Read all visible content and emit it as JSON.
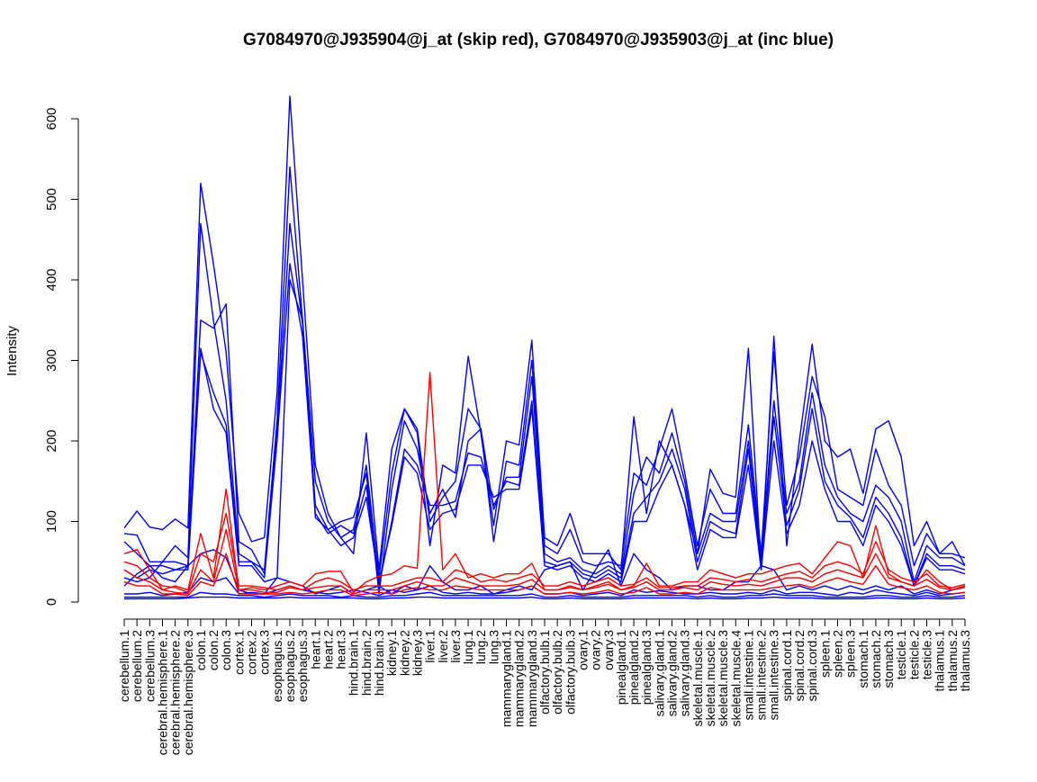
{
  "chart_data": {
    "type": "line",
    "title": "G7084970@J935904@j_at (skip red), G7084970@J935903@j_at (inc blue)",
    "ylabel": "Intensity",
    "xlabel": "",
    "ylim": [
      0,
      600
    ],
    "yticks": [
      0,
      100,
      200,
      300,
      400,
      500,
      600
    ],
    "categories": [
      "cerebellum.1",
      "cerebellum.2",
      "cerebellum.3",
      "cerebral.hemisphere.1",
      "cerebral.hemisphere.2",
      "cerebral.hemisphere.3",
      "colon.1",
      "colon.2",
      "colon.3",
      "cortex.1",
      "cortex.2",
      "cortex.3",
      "esophagus.1",
      "esophagus.2",
      "esophagus.3",
      "heart.1",
      "heart.2",
      "heart.3",
      "hind.brain.1",
      "hind.brain.2",
      "hind.brain.3",
      "kidney.1",
      "kidney.2",
      "kidney.3",
      "liver.1",
      "liver.2",
      "liver.3",
      "lung.1",
      "lung.2",
      "lung.3",
      "mammarygland.1",
      "mammarygland.2",
      "mammarygland.3",
      "olfactory.bulb.1",
      "olfactory.bulb.2",
      "olfactory.bulb.3",
      "ovary.1",
      "ovary.2",
      "ovary.3",
      "pinealgland.1",
      "pinealgland.2",
      "pinealgland.3",
      "salivary.gland.1",
      "salivary.gland.2",
      "salivary.gland.3",
      "skeletal.muscle.1",
      "skeletal.muscle.2",
      "skeletal.muscle.3",
      "skeletal.muscle.4",
      "small.intestine.1",
      "small.intestine.2",
      "small.intestine.3",
      "spinal.cord.1",
      "spinal.cord.2",
      "spinal.cord.3",
      "spleen.1",
      "spleen.2",
      "spleen.3",
      "stomach.1",
      "stomach.2",
      "stomach.3",
      "testicle.1",
      "testicle.2",
      "testicle.3",
      "thalamus.1",
      "thalamus.2",
      "thalamus.3"
    ],
    "colors": {
      "skip": "#ff0000",
      "inc": "#0000ff"
    },
    "grid": false,
    "legend": "none",
    "series": [
      {
        "group": "inc",
        "values": [
          92,
          113,
          93,
          90,
          103,
          92,
          520,
          420,
          310,
          110,
          75,
          80,
          260,
          628,
          400,
          170,
          110,
          80,
          60,
          210,
          40,
          190,
          240,
          210,
          70,
          170,
          160,
          305,
          210,
          95,
          200,
          195,
          325,
          80,
          70,
          110,
          60,
          60,
          60,
          40,
          230,
          110,
          200,
          170,
          120,
          60,
          165,
          135,
          130,
          315,
          40,
          330,
          70,
          200,
          320,
          200,
          180,
          190,
          135,
          215,
          225,
          180,
          70,
          100,
          60,
          75,
          45
        ]
      },
      {
        "group": "inc",
        "values": [
          85,
          83,
          50,
          50,
          70,
          55,
          470,
          350,
          250,
          60,
          50,
          40,
          225,
          540,
          350,
          150,
          100,
          80,
          90,
          170,
          30,
          160,
          240,
          215,
          100,
          130,
          150,
          240,
          215,
          75,
          175,
          170,
          300,
          70,
          60,
          90,
          50,
          45,
          50,
          45,
          160,
          145,
          190,
          240,
          160,
          70,
          140,
          110,
          110,
          220,
          60,
          310,
          120,
          180,
          280,
          230,
          140,
          130,
          120,
          190,
          145,
          120,
          45,
          85,
          60,
          60,
          55
        ]
      },
      {
        "group": "inc",
        "values": [
          75,
          60,
          45,
          45,
          40,
          45,
          350,
          340,
          370,
          75,
          65,
          35,
          210,
          470,
          345,
          120,
          90,
          100,
          105,
          160,
          10,
          140,
          225,
          190,
          110,
          140,
          105,
          200,
          215,
          115,
          155,
          155,
          280,
          60,
          50,
          55,
          40,
          35,
          45,
          35,
          135,
          180,
          160,
          210,
          150,
          60,
          110,
          100,
          100,
          200,
          50,
          250,
          110,
          150,
          260,
          170,
          130,
          110,
          100,
          145,
          130,
          100,
          25,
          70,
          55,
          55,
          45
        ]
      },
      {
        "group": "inc",
        "values": [
          40,
          30,
          40,
          35,
          40,
          40,
          310,
          260,
          220,
          50,
          50,
          30,
          200,
          420,
          330,
          110,
          85,
          95,
          85,
          145,
          20,
          100,
          190,
          170,
          120,
          120,
          125,
          185,
          180,
          120,
          150,
          145,
          250,
          50,
          45,
          50,
          35,
          30,
          40,
          30,
          110,
          130,
          150,
          190,
          140,
          50,
          100,
          90,
          85,
          190,
          45,
          230,
          95,
          140,
          240,
          150,
          120,
          105,
          80,
          130,
          110,
          80,
          20,
          60,
          45,
          45,
          40
        ]
      },
      {
        "group": "inc",
        "values": [
          30,
          25,
          30,
          50,
          50,
          45,
          315,
          240,
          210,
          45,
          45,
          25,
          30,
          400,
          350,
          105,
          90,
          70,
          80,
          130,
          25,
          95,
          180,
          160,
          90,
          110,
          115,
          170,
          170,
          130,
          140,
          140,
          240,
          45,
          40,
          45,
          30,
          25,
          35,
          25,
          100,
          100,
          140,
          170,
          120,
          40,
          90,
          80,
          80,
          170,
          40,
          200,
          85,
          120,
          200,
          140,
          100,
          100,
          70,
          120,
          100,
          70,
          20,
          55,
          40,
          40,
          35
        ]
      },
      {
        "group": "inc",
        "values": [
          10,
          10,
          12,
          8,
          10,
          12,
          30,
          25,
          30,
          10,
          12,
          10,
          15,
          20,
          15,
          12,
          10,
          12,
          15,
          12,
          8,
          15,
          12,
          15,
          20,
          12,
          10,
          12,
          10,
          10,
          12,
          15,
          20,
          10,
          10,
          12,
          8,
          10,
          12,
          8,
          15,
          12,
          14,
          12,
          10,
          10,
          12,
          10,
          10,
          12,
          10,
          15,
          10,
          12,
          12,
          10,
          8,
          12,
          10,
          15,
          12,
          10,
          8,
          12,
          8,
          10,
          12
        ]
      },
      {
        "group": "inc",
        "values": [
          6,
          6,
          6,
          6,
          6,
          6,
          12,
          10,
          10,
          8,
          8,
          6,
          8,
          10,
          8,
          8,
          8,
          6,
          8,
          6,
          6,
          8,
          8,
          10,
          12,
          8,
          8,
          8,
          8,
          8,
          8,
          8,
          10,
          6,
          6,
          8,
          6,
          6,
          6,
          6,
          8,
          8,
          8,
          8,
          8,
          6,
          8,
          6,
          6,
          8,
          8,
          10,
          8,
          8,
          8,
          6,
          6,
          6,
          6,
          8,
          8,
          6,
          6,
          8,
          6,
          6,
          8
        ]
      },
      {
        "group": "inc",
        "values": [
          4,
          4,
          4,
          4,
          4,
          5,
          6,
          6,
          6,
          5,
          5,
          5,
          5,
          6,
          5,
          5,
          5,
          5,
          5,
          4,
          4,
          5,
          5,
          6,
          6,
          5,
          5,
          5,
          5,
          5,
          5,
          5,
          6,
          4,
          4,
          5,
          4,
          4,
          4,
          4,
          5,
          5,
          5,
          5,
          5,
          4,
          5,
          4,
          4,
          5,
          5,
          6,
          5,
          5,
          5,
          4,
          4,
          4,
          4,
          5,
          5,
          4,
          4,
          5,
          4,
          4,
          5
        ]
      },
      {
        "group": "inc",
        "values": [
          20,
          35,
          45,
          30,
          25,
          45,
          60,
          65,
          55,
          15,
          10,
          10,
          30,
          25,
          20,
          10,
          15,
          20,
          10,
          15,
          20,
          10,
          20,
          15,
          45,
          25,
          15,
          15,
          20,
          10,
          15,
          20,
          15,
          40,
          45,
          50,
          15,
          40,
          65,
          20,
          60,
          40,
          30,
          15,
          20,
          20,
          15,
          15,
          25,
          25,
          45,
          40,
          15,
          20,
          15,
          20,
          15,
          20,
          15,
          20,
          15,
          20,
          10,
          15,
          10,
          15,
          20
        ]
      },
      {
        "group": "skip",
        "values": [
          60,
          65,
          40,
          15,
          20,
          15,
          85,
          30,
          140,
          15,
          18,
          15,
          20,
          25,
          20,
          35,
          38,
          38,
          12,
          25,
          32,
          35,
          45,
          42,
          285,
          40,
          60,
          30,
          35,
          30,
          35,
          35,
          48,
          15,
          15,
          20,
          15,
          20,
          25,
          15,
          20,
          48,
          20,
          20,
          25,
          25,
          40,
          35,
          30,
          35,
          35,
          40,
          45,
          48,
          35,
          55,
          75,
          70,
          30,
          95,
          35,
          25,
          20,
          40,
          25,
          15,
          20
        ]
      },
      {
        "group": "skip",
        "values": [
          50,
          45,
          30,
          20,
          18,
          12,
          60,
          50,
          110,
          20,
          20,
          18,
          15,
          20,
          15,
          25,
          30,
          25,
          15,
          20,
          20,
          20,
          25,
          30,
          30,
          25,
          40,
          35,
          25,
          28,
          25,
          30,
          35,
          20,
          20,
          25,
          20,
          25,
          30,
          20,
          22,
          30,
          18,
          18,
          20,
          20,
          30,
          28,
          25,
          28,
          25,
          30,
          35,
          38,
          30,
          45,
          50,
          45,
          35,
          75,
          40,
          30,
          25,
          35,
          20,
          18,
          22
        ]
      },
      {
        "group": "skip",
        "values": [
          40,
          30,
          25,
          15,
          12,
          10,
          40,
          25,
          90,
          15,
          15,
          12,
          12,
          18,
          15,
          18,
          20,
          20,
          10,
          15,
          15,
          15,
          20,
          25,
          20,
          20,
          30,
          25,
          20,
          20,
          20,
          22,
          28,
          15,
          15,
          18,
          15,
          18,
          22,
          15,
          18,
          25,
          15,
          15,
          18,
          15,
          25,
          22,
          20,
          22,
          20,
          25,
          30,
          30,
          25,
          35,
          40,
          35,
          30,
          60,
          30,
          25,
          20,
          28,
          18,
          15,
          18
        ]
      },
      {
        "group": "skip",
        "values": [
          25,
          20,
          20,
          10,
          10,
          8,
          25,
          20,
          60,
          10,
          10,
          10,
          10,
          12,
          10,
          12,
          15,
          15,
          8,
          10,
          12,
          10,
          15,
          18,
          15,
          15,
          20,
          18,
          15,
          15,
          15,
          15,
          20,
          10,
          10,
          12,
          10,
          12,
          15,
          10,
          12,
          18,
          10,
          10,
          12,
          10,
          18,
          15,
          15,
          15,
          15,
          18,
          20,
          22,
          18,
          25,
          30,
          25,
          22,
          45,
          22,
          18,
          15,
          20,
          12,
          10,
          12
        ]
      }
    ]
  }
}
